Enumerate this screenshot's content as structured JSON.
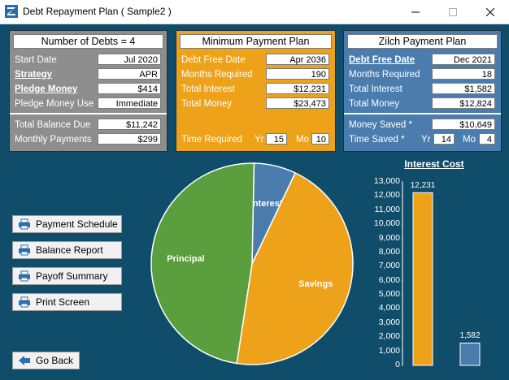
{
  "window": {
    "title": "Debt Repayment Plan ( Sample2 )",
    "controls": [
      "minimize",
      "maximize",
      "close"
    ]
  },
  "panel_debts": {
    "title": "Number of Debts = 4",
    "rows": [
      {
        "label": "Start Date",
        "value": "Jul  2020"
      },
      {
        "label": "Strategy",
        "value": "APR"
      },
      {
        "label": "Pledge Money",
        "value": "$414"
      },
      {
        "label": "Pledge Money Use",
        "value": "Immediate"
      }
    ],
    "total_balance_label": "Total Balance Due",
    "total_balance": "$11,242",
    "monthly_payments_label": "Monthly Payments",
    "monthly_payments": "$299"
  },
  "panel_minimum": {
    "title": "Minimum Payment Plan",
    "rows": [
      {
        "label": "Debt Free Date",
        "value": "Apr  2036"
      },
      {
        "label": "Months Required",
        "value": "190"
      },
      {
        "label": "Total Interest",
        "value": "$12,231"
      },
      {
        "label": "Total Money",
        "value": "$23,473"
      }
    ],
    "time_required_label": "Time Required",
    "yr_label": "Yr",
    "yr_value": "15",
    "mo_label": "Mo",
    "mo_value": "10"
  },
  "panel_zilch": {
    "title": "Zilch Payment Plan",
    "rows": [
      {
        "label": "Debt Free Date",
        "value": "Dec  2021"
      },
      {
        "label": "Months Required",
        "value": "18"
      },
      {
        "label": "Total Interest",
        "value": "$1,582"
      },
      {
        "label": "Total Money",
        "value": "$12,824"
      }
    ],
    "money_saved_label": "Money Saved *",
    "money_saved": "$10,649",
    "time_saved_label": "Time Saved *",
    "yr_label": "Yr",
    "yr_value": "14",
    "mo_label": "Mo",
    "mo_value": "4"
  },
  "buttons": {
    "payment_schedule": "Payment Schedule",
    "balance_report": "Balance Report",
    "payoff_summary": "Payoff Summary",
    "print_screen": "Print Screen",
    "go_back": "Go Back"
  },
  "colors": {
    "window_bg": "#0f4d6b",
    "debts_panel": "#8e8e8e",
    "minimum_panel": "#eda21a",
    "zilch_panel": "#4a7cae",
    "principal": "#5a9e3d",
    "savings": "#eda21a",
    "interest": "#4a7cae"
  },
  "chart_data": [
    {
      "type": "pie",
      "title": "",
      "slices": [
        {
          "name": "Interest",
          "value": 1582,
          "color": "#4a7cae"
        },
        {
          "name": "Savings",
          "value": 10649,
          "color": "#eda21a"
        },
        {
          "name": "Principal",
          "value": 11242,
          "color": "#5a9e3d"
        }
      ]
    },
    {
      "type": "bar",
      "title": "Interest Cost",
      "categories": [
        "Minimum Payment Plan",
        "Zilch Payment Plan"
      ],
      "values": [
        12231,
        1582
      ],
      "value_labels": [
        "12,231",
        "1,582"
      ],
      "colors": [
        "#eda21a",
        "#4a7cae"
      ],
      "ylim": [
        0,
        13000
      ],
      "yticks": [
        "0",
        "1,000",
        "2,000",
        "3,000",
        "4,000",
        "5,000",
        "6,000",
        "7,000",
        "8,000",
        "9,000",
        "10,000",
        "11,000",
        "12,000",
        "13,000"
      ],
      "ytick_values": [
        0,
        1000,
        2000,
        3000,
        4000,
        5000,
        6000,
        7000,
        8000,
        9000,
        10000,
        11000,
        12000,
        13000
      ]
    }
  ]
}
